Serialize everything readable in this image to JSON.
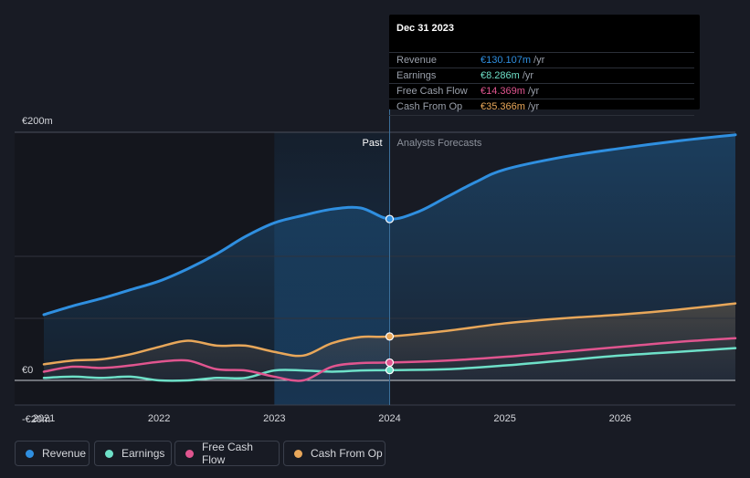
{
  "tooltip": {
    "date": "Dec 31 2023",
    "rows": [
      {
        "label": "Revenue",
        "value": "€130.107m",
        "unit": "/yr",
        "color": "#2f8fe0"
      },
      {
        "label": "Earnings",
        "value": "€8.286m",
        "unit": "/yr",
        "color": "#6ee0c8"
      },
      {
        "label": "Free Cash Flow",
        "value": "€14.369m",
        "unit": "/yr",
        "color": "#e0558f"
      },
      {
        "label": "Cash From Op",
        "value": "€35.366m",
        "unit": "/yr",
        "color": "#e8a75a"
      }
    ]
  },
  "legend": [
    {
      "label": "Revenue",
      "color": "#2f8fe0"
    },
    {
      "label": "Earnings",
      "color": "#6ee0c8"
    },
    {
      "label": "Free Cash Flow",
      "color": "#e0558f"
    },
    {
      "label": "Cash From Op",
      "color": "#e8a75a"
    }
  ],
  "chart_data": {
    "type": "line",
    "ylim": [
      -20,
      200
    ],
    "xlim": [
      2021.0,
      2027.0
    ],
    "y_tick_labels": [
      {
        "value": 200,
        "label": "€200m"
      },
      {
        "value": 0,
        "label": "€0"
      },
      {
        "value": -20,
        "label": "-€20m"
      }
    ],
    "x_tick_labels": [
      "2021",
      "2022",
      "2023",
      "2024",
      "2025",
      "2026"
    ],
    "x_tick_values": [
      2021,
      2022,
      2023,
      2024,
      2025,
      2026
    ],
    "past_label": "Past",
    "forecast_label": "Analysts Forecasts",
    "divider_x": 2024.0,
    "highlight_start": 2023.0,
    "series": [
      {
        "name": "Revenue",
        "color": "#2f8fe0",
        "points": [
          [
            2021.0,
            53
          ],
          [
            2021.25,
            60
          ],
          [
            2021.5,
            66
          ],
          [
            2021.75,
            73
          ],
          [
            2022.0,
            80
          ],
          [
            2022.25,
            90
          ],
          [
            2022.5,
            102
          ],
          [
            2022.75,
            116
          ],
          [
            2023.0,
            127
          ],
          [
            2023.25,
            133
          ],
          [
            2023.5,
            138
          ],
          [
            2023.75,
            139
          ],
          [
            2024.0,
            130.1
          ],
          [
            2024.25,
            136
          ],
          [
            2024.5,
            148
          ],
          [
            2024.75,
            160
          ],
          [
            2025.0,
            170
          ],
          [
            2025.5,
            180
          ],
          [
            2026.0,
            187
          ],
          [
            2026.5,
            193
          ],
          [
            2027.0,
            198
          ]
        ]
      },
      {
        "name": "Earnings",
        "color": "#6ee0c8",
        "points": [
          [
            2021.0,
            2
          ],
          [
            2021.25,
            3
          ],
          [
            2021.5,
            2
          ],
          [
            2021.75,
            3
          ],
          [
            2022.0,
            0
          ],
          [
            2022.25,
            0
          ],
          [
            2022.5,
            2
          ],
          [
            2022.75,
            2
          ],
          [
            2023.0,
            8
          ],
          [
            2023.25,
            8
          ],
          [
            2023.5,
            7
          ],
          [
            2023.75,
            8
          ],
          [
            2024.0,
            8.3
          ],
          [
            2024.5,
            9
          ],
          [
            2025.0,
            12
          ],
          [
            2025.5,
            16
          ],
          [
            2026.0,
            20
          ],
          [
            2026.5,
            23
          ],
          [
            2027.0,
            26
          ]
        ]
      },
      {
        "name": "Free Cash Flow",
        "color": "#e0558f",
        "points": [
          [
            2021.0,
            7
          ],
          [
            2021.25,
            11
          ],
          [
            2021.5,
            10
          ],
          [
            2021.75,
            12
          ],
          [
            2022.0,
            15
          ],
          [
            2022.25,
            16
          ],
          [
            2022.5,
            9
          ],
          [
            2022.75,
            8
          ],
          [
            2023.0,
            3
          ],
          [
            2023.25,
            0
          ],
          [
            2023.5,
            11
          ],
          [
            2023.75,
            14
          ],
          [
            2024.0,
            14.4
          ],
          [
            2024.5,
            16
          ],
          [
            2025.0,
            19
          ],
          [
            2025.5,
            23
          ],
          [
            2026.0,
            27
          ],
          [
            2026.5,
            31
          ],
          [
            2027.0,
            34
          ]
        ]
      },
      {
        "name": "Cash From Op",
        "color": "#e8a75a",
        "points": [
          [
            2021.0,
            13
          ],
          [
            2021.25,
            16
          ],
          [
            2021.5,
            17
          ],
          [
            2021.75,
            21
          ],
          [
            2022.0,
            27
          ],
          [
            2022.25,
            32
          ],
          [
            2022.5,
            28
          ],
          [
            2022.75,
            28
          ],
          [
            2023.0,
            23
          ],
          [
            2023.25,
            20
          ],
          [
            2023.5,
            30
          ],
          [
            2023.75,
            35
          ],
          [
            2024.0,
            35.4
          ],
          [
            2024.5,
            40
          ],
          [
            2025.0,
            46
          ],
          [
            2025.5,
            50
          ],
          [
            2026.0,
            53
          ],
          [
            2026.5,
            57
          ],
          [
            2027.0,
            62
          ]
        ]
      }
    ]
  }
}
